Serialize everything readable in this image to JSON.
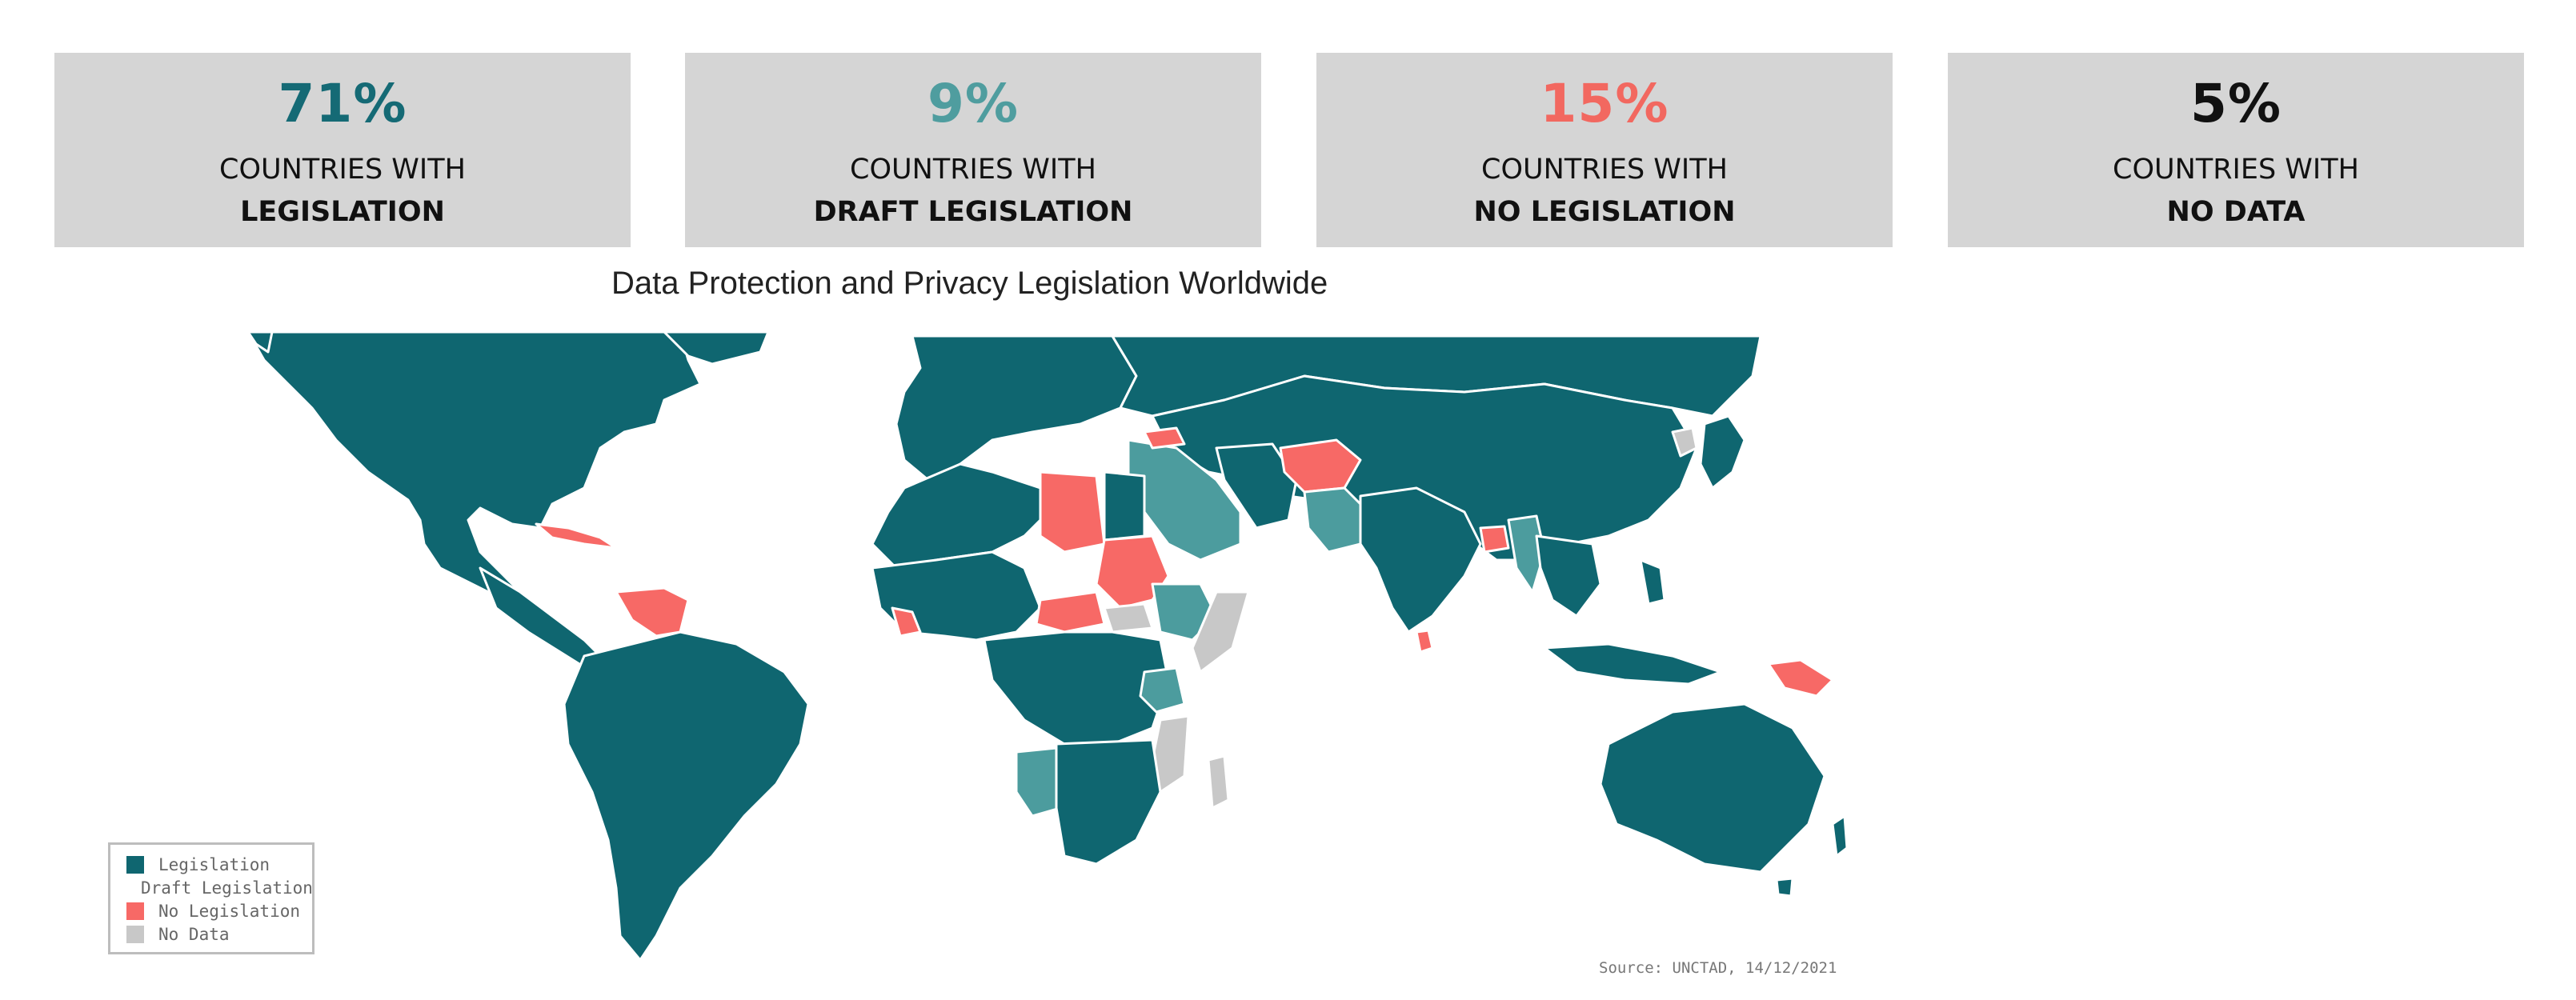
{
  "stats": [
    {
      "value": "71%",
      "line1": "COUNTRIES WITH",
      "line2": "LEGISLATION",
      "color": "#156a75"
    },
    {
      "value": "9%",
      "line1": "COUNTRIES WITH",
      "line2": "DRAFT LEGISLATION",
      "color": "#4f9d9f"
    },
    {
      "value": "15%",
      "line1": "COUNTRIES WITH",
      "line2": "NO LEGISLATION",
      "color": "#f26860"
    },
    {
      "value": "5%",
      "line1": "COUNTRIES WITH",
      "line2": "NO DATA",
      "color": "#111111"
    }
  ],
  "map": {
    "title": "Data Protection and Privacy Legislation Worldwide",
    "source": "Source: UNCTAD, 14/12/2021",
    "colors": {
      "legislation": "#0f6670",
      "draft": "#4c9c9e",
      "none": "#f76966",
      "nodata": "#c8c8c8"
    },
    "legend": [
      {
        "label": "Legislation",
        "color": "#0f6670"
      },
      {
        "label": "Draft Legislation",
        "color": "#4c9c9e"
      },
      {
        "label": "No Legislation",
        "color": "#f76966"
      },
      {
        "label": "No Data",
        "color": "#c8c8c8"
      }
    ]
  }
}
